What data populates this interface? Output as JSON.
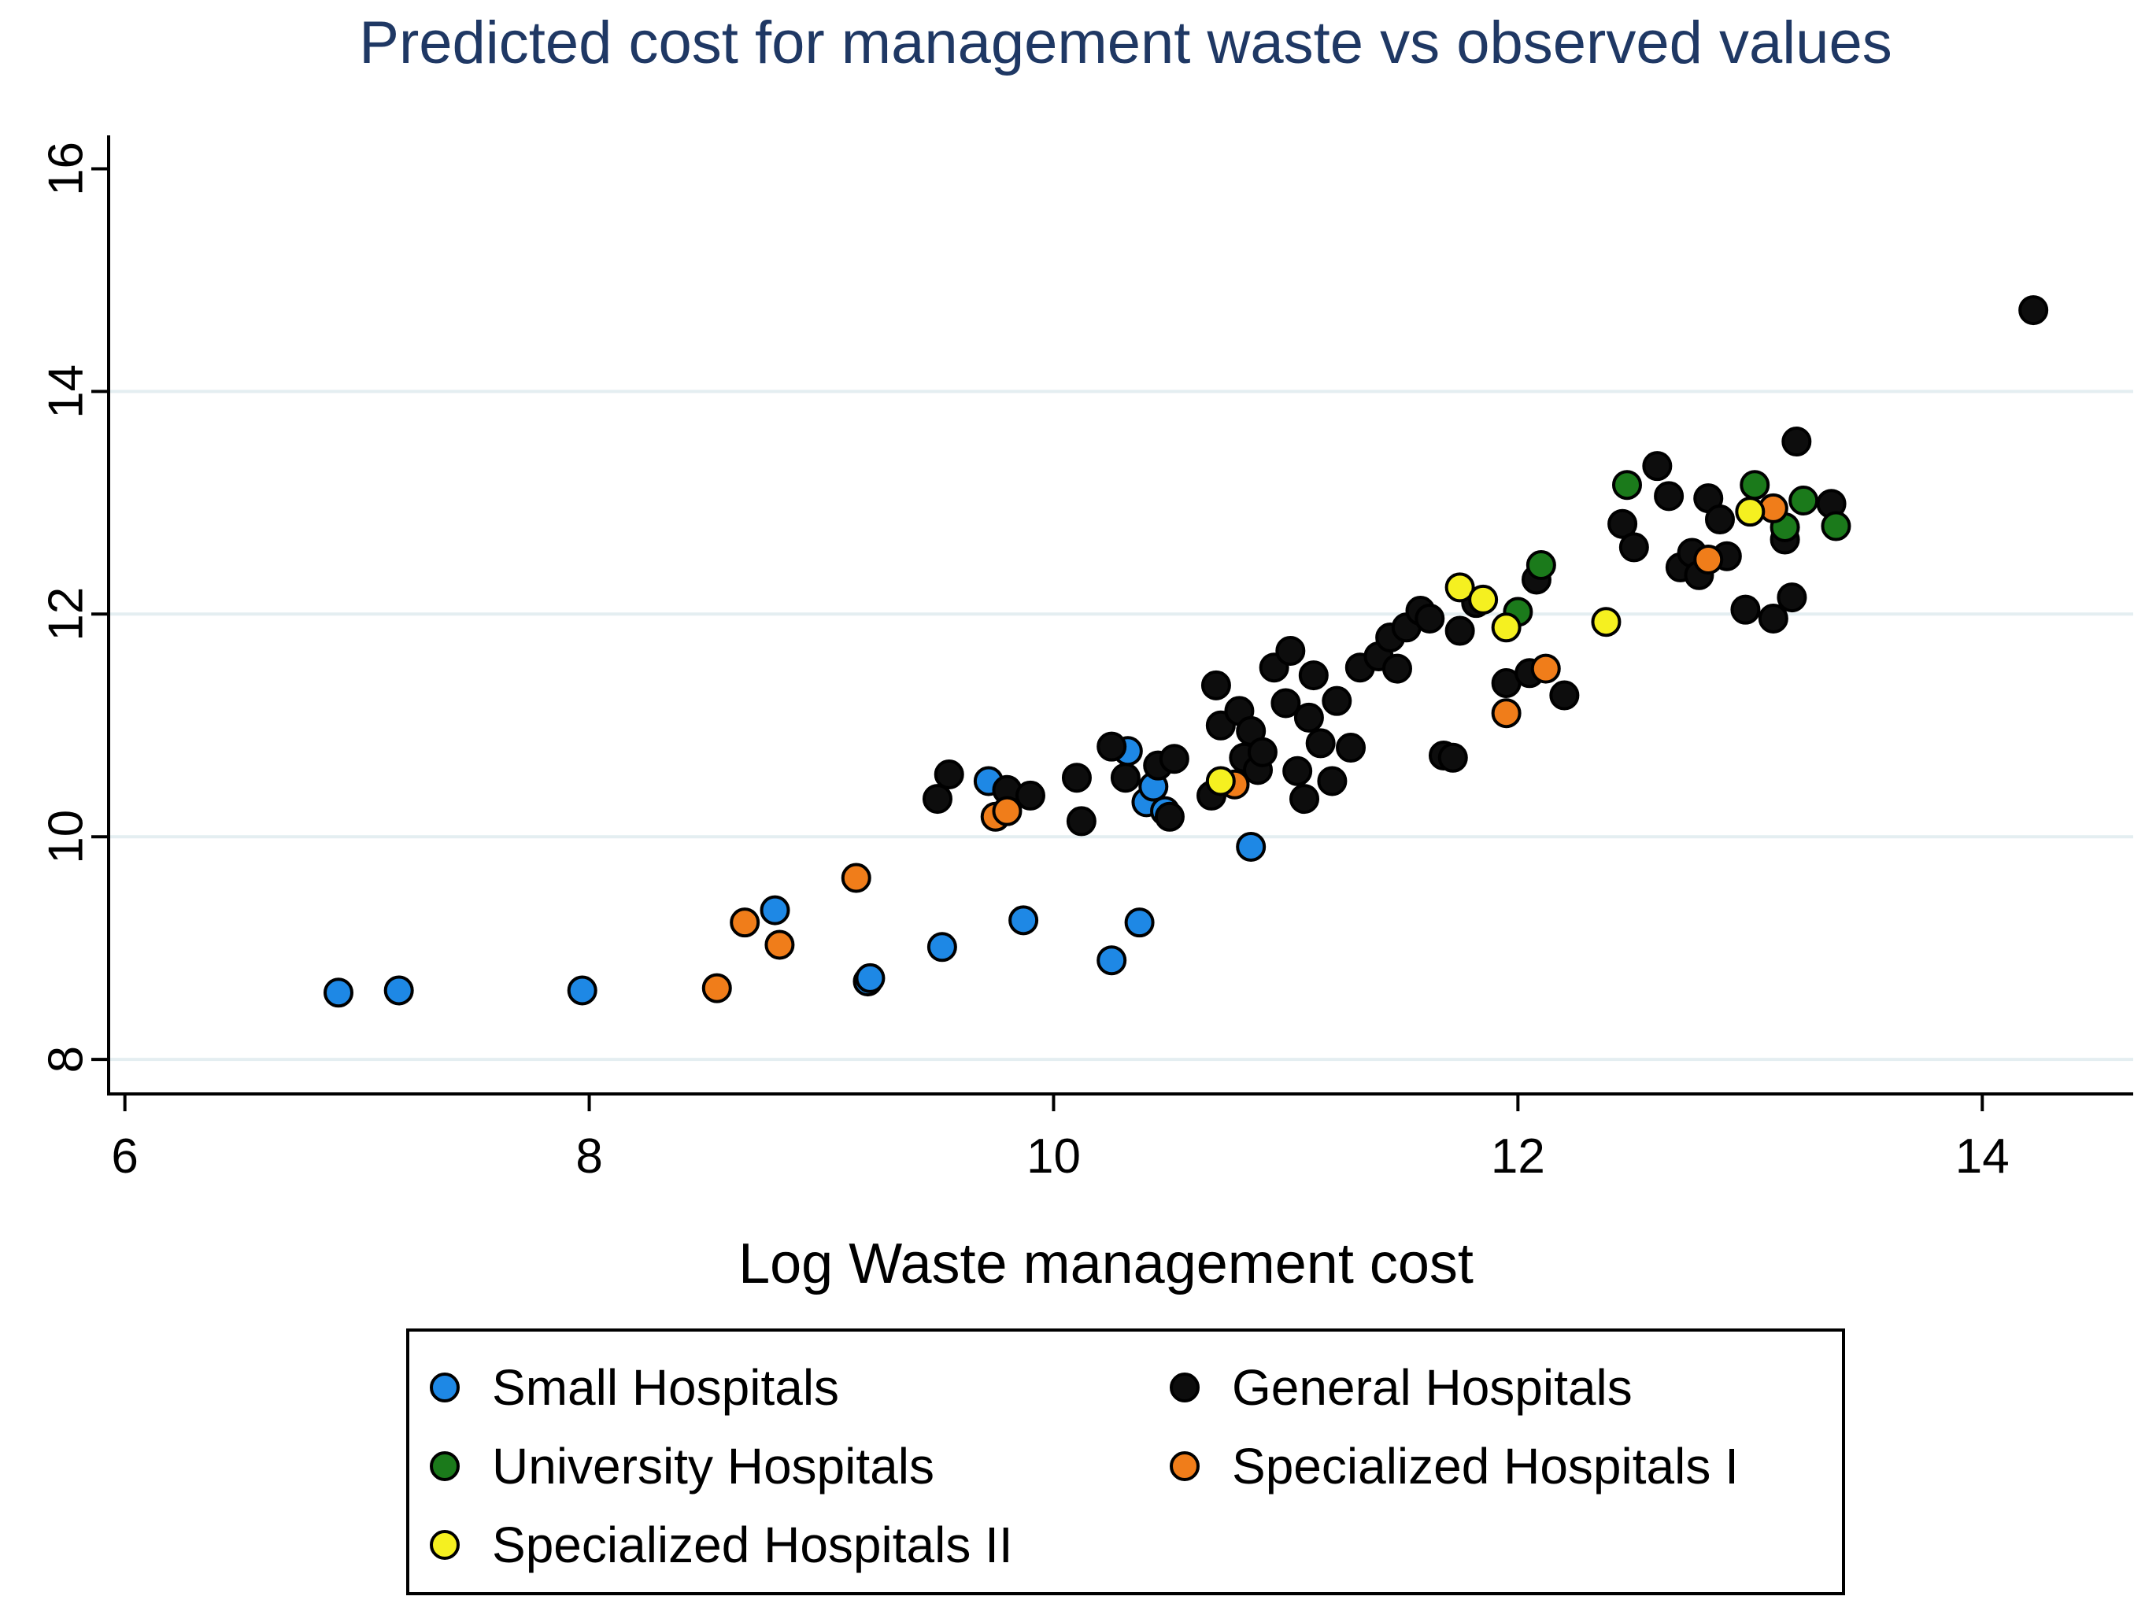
{
  "chart_data": {
    "type": "scatter",
    "title": "Predicted cost for management waste vs observed values",
    "xlabel": "Log Waste management cost",
    "ylabel": "",
    "xlim": [
      5.93,
      14.65
    ],
    "ylim": [
      7.69,
      16.3
    ],
    "xticks": [
      6,
      8,
      10,
      12,
      14
    ],
    "yticks": [
      8,
      10,
      12,
      14,
      16
    ],
    "grid": "horizontal",
    "legend_position": "bottom",
    "series": [
      {
        "name": "Small Hospitals",
        "color": "#1e88e5",
        "points": [
          [
            6.92,
            8.6
          ],
          [
            7.18,
            8.62
          ],
          [
            7.97,
            8.62
          ],
          [
            8.8,
            9.34
          ],
          [
            9.2,
            8.7
          ],
          [
            9.21,
            8.73
          ],
          [
            9.52,
            9.01
          ],
          [
            9.72,
            10.5
          ],
          [
            9.87,
            9.25
          ],
          [
            10.25,
            8.89
          ],
          [
            10.32,
            10.77
          ],
          [
            10.37,
            9.23
          ],
          [
            10.4,
            10.31
          ],
          [
            10.43,
            10.45
          ],
          [
            10.48,
            10.23
          ],
          [
            10.85,
            9.91
          ]
        ]
      },
      {
        "name": "General Hospitals",
        "color": "#0d0d0d",
        "points": [
          [
            9.5,
            10.34
          ],
          [
            9.55,
            10.56
          ],
          [
            9.8,
            10.42
          ],
          [
            9.9,
            10.37
          ],
          [
            10.1,
            10.53
          ],
          [
            10.12,
            10.14
          ],
          [
            10.25,
            10.81
          ],
          [
            10.31,
            10.53
          ],
          [
            10.45,
            10.64
          ],
          [
            10.5,
            10.18
          ],
          [
            10.52,
            10.7
          ],
          [
            10.68,
            10.37
          ],
          [
            10.7,
            11.36
          ],
          [
            10.72,
            11.0
          ],
          [
            10.8,
            11.13
          ],
          [
            10.82,
            10.71
          ],
          [
            10.85,
            10.95
          ],
          [
            10.88,
            10.6
          ],
          [
            10.9,
            10.76
          ],
          [
            10.95,
            11.52
          ],
          [
            11.0,
            11.2
          ],
          [
            11.02,
            11.67
          ],
          [
            11.05,
            10.59
          ],
          [
            11.08,
            10.34
          ],
          [
            11.1,
            11.07
          ],
          [
            11.12,
            11.45
          ],
          [
            11.15,
            10.84
          ],
          [
            11.2,
            10.5
          ],
          [
            11.22,
            11.22
          ],
          [
            11.28,
            10.8
          ],
          [
            11.32,
            11.52
          ],
          [
            11.4,
            11.62
          ],
          [
            11.45,
            11.79
          ],
          [
            11.48,
            11.51
          ],
          [
            11.52,
            11.88
          ],
          [
            11.58,
            12.03
          ],
          [
            11.62,
            11.96
          ],
          [
            11.68,
            10.73
          ],
          [
            11.72,
            10.71
          ],
          [
            11.75,
            11.85
          ],
          [
            11.82,
            12.1
          ],
          [
            11.95,
            11.38
          ],
          [
            12.05,
            11.47
          ],
          [
            12.08,
            12.31
          ],
          [
            12.2,
            11.27
          ],
          [
            12.45,
            12.81
          ],
          [
            12.5,
            12.6
          ],
          [
            12.6,
            13.33
          ],
          [
            12.65,
            13.06
          ],
          [
            12.7,
            12.42
          ],
          [
            12.75,
            12.55
          ],
          [
            12.78,
            12.35
          ],
          [
            12.82,
            13.04
          ],
          [
            12.87,
            12.85
          ],
          [
            12.9,
            12.52
          ],
          [
            12.98,
            12.04
          ],
          [
            13.1,
            11.96
          ],
          [
            13.15,
            12.67
          ],
          [
            13.18,
            12.15
          ],
          [
            13.2,
            13.55
          ],
          [
            13.35,
            12.99
          ],
          [
            14.22,
            14.73
          ]
        ]
      },
      {
        "name": "University Hospitals",
        "color": "#1b7a1b",
        "points": [
          [
            12.0,
            12.02
          ],
          [
            12.1,
            12.44
          ],
          [
            12.47,
            13.16
          ],
          [
            13.02,
            13.16
          ],
          [
            13.15,
            12.78
          ],
          [
            13.23,
            13.02
          ],
          [
            13.37,
            12.79
          ]
        ]
      },
      {
        "name": "Specialized Hospitals I",
        "color": "#f07d1a",
        "points": [
          [
            8.55,
            8.64
          ],
          [
            8.67,
            9.23
          ],
          [
            8.82,
            9.03
          ],
          [
            9.15,
            9.63
          ],
          [
            9.75,
            10.18
          ],
          [
            9.8,
            10.23
          ],
          [
            10.78,
            10.47
          ],
          [
            11.95,
            11.11
          ],
          [
            12.12,
            11.51
          ],
          [
            12.82,
            12.49
          ],
          [
            13.1,
            12.95
          ]
        ]
      },
      {
        "name": "Specialized Hospitals II",
        "color": "#f5f020",
        "points": [
          [
            10.72,
            10.5
          ],
          [
            11.75,
            12.24
          ],
          [
            11.85,
            12.13
          ],
          [
            11.95,
            11.88
          ],
          [
            12.38,
            11.93
          ],
          [
            13.0,
            12.92
          ]
        ]
      }
    ]
  },
  "legend": {
    "items": [
      {
        "label": "Small Hospitals",
        "color": "#1e88e5"
      },
      {
        "label": "General Hospitals",
        "color": "#0d0d0d"
      },
      {
        "label": "University Hospitals",
        "color": "#1b7a1b"
      },
      {
        "label": "Specialized Hospitals I",
        "color": "#f07d1a"
      },
      {
        "label": "Specialized Hospitals II",
        "color": "#f5f020"
      }
    ]
  }
}
